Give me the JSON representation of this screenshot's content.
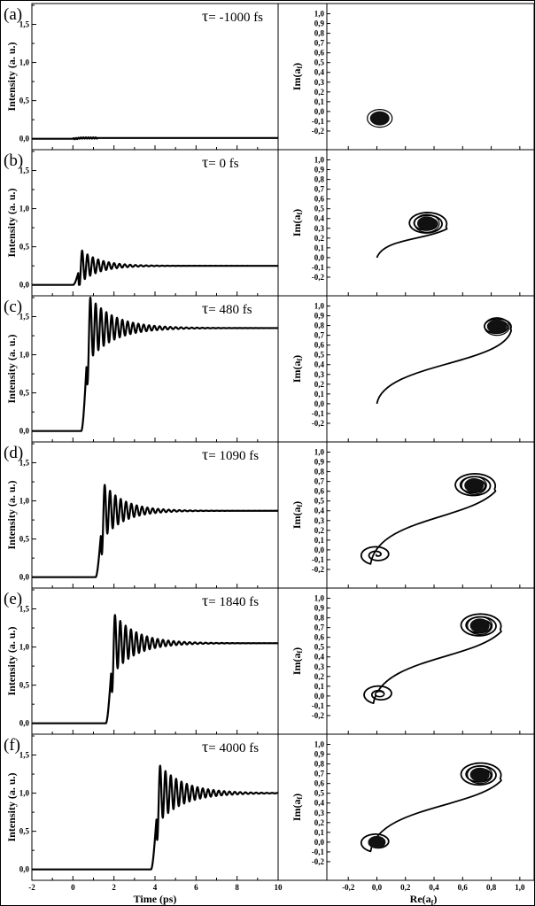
{
  "figure": {
    "x_axis_label_left": "Time (ps)",
    "x_axis_label_right": "Re(a",
    "x_axis_label_right_sub": "f",
    "x_axis_label_right_close": ")",
    "y_axis_label_left": "Intensity (a. u.)",
    "y_axis_label_right": "Im(a",
    "y_axis_label_right_sub": "f",
    "y_axis_label_right_close": ")",
    "tau_symbol": "τ"
  },
  "chart_data": [
    {
      "panel": "(a)",
      "tau": "= -1000 fs",
      "type": "line",
      "xlim": [
        -2,
        10
      ],
      "ylim": [
        -0.05,
        1.75
      ],
      "xticks": [
        -2,
        0,
        2,
        4,
        6,
        8,
        10
      ],
      "yticks": [
        "0,0",
        "0,5",
        "1,0",
        "1,5"
      ],
      "series": [
        {
          "onset": 0.0,
          "final": 0.01,
          "overshoot": 0.0,
          "ripple_period": 0.26,
          "ripple_tau": 0.8
        }
      ]
    },
    {
      "panel": "(a)",
      "type": "scatter-trajectory",
      "xlim": [
        -0.35,
        1.1
      ],
      "ylim": [
        -0.3,
        1.05
      ],
      "xticks": [
        "-0,2",
        "0,0",
        "0,2",
        "0,4",
        "0,6",
        "0,8",
        "1,0"
      ],
      "yticks": [
        "-0,2",
        "-0,1",
        "0,0",
        "0,1",
        "0,2",
        "0,3",
        "0,4",
        "0,5",
        "0,6",
        "0,7",
        "0,8",
        "0,9",
        "1,0"
      ],
      "start": [
        0.02,
        -0.07
      ],
      "end": [
        0.02,
        -0.07
      ],
      "start_spiral": false,
      "end_spiral_radius": 0.035
    },
    {
      "panel": "(b)",
      "tau": "= 0 fs",
      "type": "line",
      "xlim": [
        -2,
        10
      ],
      "ylim": [
        -0.05,
        1.75
      ],
      "xticks": [
        -2,
        0,
        2,
        4,
        6,
        8,
        10
      ],
      "yticks": [
        "0,0",
        "0,5",
        "1,0",
        "1,5"
      ],
      "series": [
        {
          "onset": 0.0,
          "final": 0.25,
          "overshoot": 0.2,
          "ripple_period": 0.26,
          "ripple_tau": 0.9
        }
      ]
    },
    {
      "panel": "(b)",
      "type": "scatter-trajectory",
      "xlim": [
        -0.35,
        1.1
      ],
      "ylim": [
        -0.3,
        1.05
      ],
      "xticks": [
        "-0,2",
        "0,0",
        "0,2",
        "0,4",
        "0,6",
        "0,8",
        "1,0"
      ],
      "yticks": [
        "-0,2",
        "-0,1",
        "0,0",
        "0,1",
        "0,2",
        "0,3",
        "0,4",
        "0,5",
        "0,6",
        "0,7",
        "0,8",
        "0,9",
        "1,0"
      ],
      "start": [
        0.0,
        0.0
      ],
      "end": [
        0.35,
        0.35
      ],
      "start_spiral": false,
      "end_spiral_radius": 0.14
    },
    {
      "panel": "(c)",
      "tau": "= 480 fs",
      "type": "line",
      "xlim": [
        -2,
        10
      ],
      "ylim": [
        -0.05,
        1.75
      ],
      "xticks": [
        -2,
        0,
        2,
        4,
        6,
        8,
        10
      ],
      "yticks": [
        "0,0",
        "0,5",
        "1,0",
        "1,5"
      ],
      "series": [
        {
          "onset": 0.4,
          "final": 1.35,
          "overshoot": 0.4,
          "ripple_period": 0.26,
          "ripple_tau": 1.2
        }
      ]
    },
    {
      "panel": "(c)",
      "type": "scatter-trajectory",
      "xlim": [
        -0.35,
        1.1
      ],
      "ylim": [
        -0.3,
        1.05
      ],
      "xticks": [
        "-0,2",
        "0,0",
        "0,2",
        "0,4",
        "0,6",
        "0,8",
        "1,0"
      ],
      "yticks": [
        "-0,2",
        "-0,1",
        "0,0",
        "0,1",
        "0,2",
        "0,3",
        "0,4",
        "0,5",
        "0,6",
        "0,7",
        "0,8",
        "0,9",
        "1,0"
      ],
      "start": [
        0.0,
        0.0
      ],
      "end": [
        0.84,
        0.79
      ],
      "start_spiral": false,
      "end_spiral_radius": 0.1
    },
    {
      "panel": "(d)",
      "tau": "= 1090 fs",
      "type": "line",
      "xlim": [
        -2,
        10
      ],
      "ylim": [
        -0.05,
        1.75
      ],
      "xticks": [
        -2,
        0,
        2,
        4,
        6,
        8,
        10
      ],
      "yticks": [
        "0,0",
        "0,5",
        "1,0",
        "1,5"
      ],
      "series": [
        {
          "onset": 1.1,
          "final": 0.87,
          "overshoot": 0.34,
          "ripple_period": 0.26,
          "ripple_tau": 1.0
        }
      ]
    },
    {
      "panel": "(d)",
      "type": "scatter-trajectory",
      "xlim": [
        -0.35,
        1.1
      ],
      "ylim": [
        -0.3,
        1.05
      ],
      "xticks": [
        "-0,2",
        "0,0",
        "0,2",
        "0,4",
        "0,6",
        "0,8",
        "1,0"
      ],
      "yticks": [
        "-0,2",
        "-0,1",
        "0,0",
        "0,1",
        "0,2",
        "0,3",
        "0,4",
        "0,5",
        "0,6",
        "0,7",
        "0,8",
        "0,9",
        "1,0"
      ],
      "start": [
        0.0,
        -0.05
      ],
      "end": [
        0.68,
        0.66
      ],
      "start_spiral": true,
      "end_spiral_radius": 0.15
    },
    {
      "panel": "(e)",
      "tau": "= 1840 fs",
      "type": "line",
      "xlim": [
        -2,
        10
      ],
      "ylim": [
        -0.05,
        1.75
      ],
      "xticks": [
        -2,
        0,
        2,
        4,
        6,
        8,
        10
      ],
      "yticks": [
        "0,0",
        "0,5",
        "1,0",
        "1,5"
      ],
      "series": [
        {
          "onset": 1.6,
          "final": 1.05,
          "overshoot": 0.37,
          "ripple_period": 0.26,
          "ripple_tau": 1.1
        }
      ]
    },
    {
      "panel": "(e)",
      "type": "scatter-trajectory",
      "xlim": [
        -0.35,
        1.1
      ],
      "ylim": [
        -0.3,
        1.05
      ],
      "xticks": [
        "-0,2",
        "0,0",
        "0,2",
        "0,4",
        "0,6",
        "0,8",
        "1,0"
      ],
      "yticks": [
        "-0,2",
        "-0,1",
        "0,0",
        "0,1",
        "0,2",
        "0,3",
        "0,4",
        "0,5",
        "0,6",
        "0,7",
        "0,8",
        "0,9",
        "1,0"
      ],
      "start": [
        0.02,
        0.02
      ],
      "end": [
        0.72,
        0.72
      ],
      "start_spiral": true,
      "end_spiral_radius": 0.15
    },
    {
      "panel": "(f)",
      "tau": "= 4000 fs",
      "type": "line",
      "xlim": [
        -2,
        10
      ],
      "ylim": [
        -0.05,
        1.75
      ],
      "xticks": [
        -2,
        0,
        2,
        4,
        6,
        8,
        10
      ],
      "yticks": [
        "0,0",
        "0,5",
        "1,0",
        "1,5"
      ],
      "series": [
        {
          "onset": 3.8,
          "final": 1.0,
          "overshoot": 0.36,
          "ripple_period": 0.26,
          "ripple_tau": 1.2
        }
      ]
    },
    {
      "panel": "(f)",
      "type": "scatter-trajectory",
      "xlim": [
        -0.35,
        1.1
      ],
      "ylim": [
        -0.3,
        1.05
      ],
      "xticks": [
        "-0,2",
        "0,0",
        "0,2",
        "0,4",
        "0,6",
        "0,8",
        "1,0"
      ],
      "yticks": [
        "-0,2",
        "-0,1",
        "0,0",
        "0,1",
        "0,2",
        "0,3",
        "0,4",
        "0,5",
        "0,6",
        "0,7",
        "0,8",
        "0,9",
        "1,0"
      ],
      "start": [
        0.0,
        0.0
      ],
      "end": [
        0.72,
        0.69
      ],
      "start_spiral": true,
      "end_spiral_radius": 0.15
    }
  ]
}
